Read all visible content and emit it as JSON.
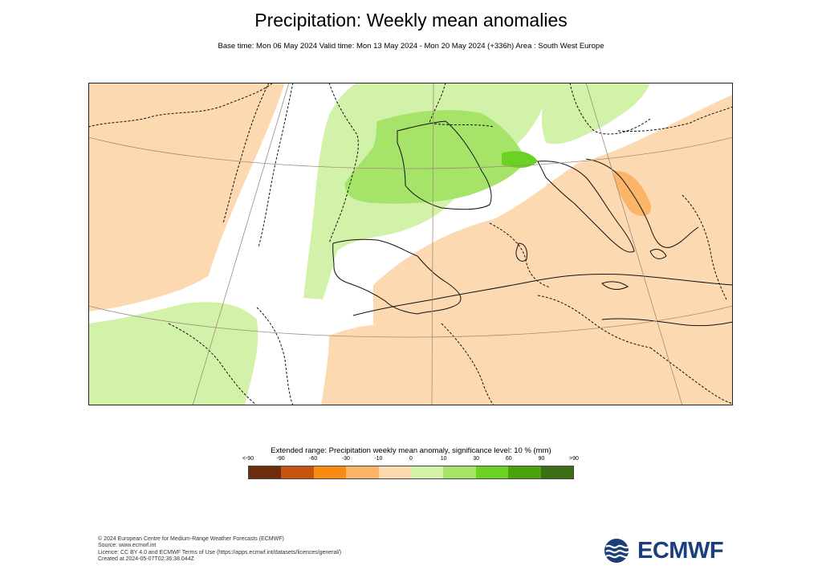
{
  "header": {
    "title": "Precipitation: Weekly mean anomalies",
    "subtitle": "Base time: Mon 06 May 2024 Valid time: Mon 13 May 2024 - Mon 20 May 2024 (+336h) Area : South West Europe"
  },
  "map": {
    "area": "South West Europe",
    "colors": {
      "positive_light": "#d3f2a9",
      "positive_mid": "#a5e468",
      "positive_strong": "#6bd123",
      "negative_light": "#fcd9b0",
      "negative_mid": "#fbb468",
      "coast": "#111111",
      "grid": "#a08c7c"
    }
  },
  "legend": {
    "title": "Extended range: Precipitation weekly mean anomaly, significance level: 10 % (mm)",
    "labels": [
      "<-90",
      "-90",
      "-60",
      "-30",
      "-10",
      "0",
      "10",
      "30",
      "60",
      "90",
      ">90"
    ],
    "colors": [
      "#6b2d0c",
      "#c55411",
      "#f98a12",
      "#fbb468",
      "#fcd9b0",
      "#d3f2a9",
      "#a5e468",
      "#6bd123",
      "#4aa30c",
      "#3c6e15"
    ]
  },
  "footer": {
    "line1": "© 2024 European Centre for Medium-Range Weather Forecasts (ECMWF)",
    "line2": "Source: www.ecmwf.int",
    "line3": "Licence: CC BY 4.0 and ECMWF Terms of Use (https://apps.ecmwf.int/datasets/licences/general/)",
    "line4": "Created at 2024-05-07T02:36:38.044Z"
  },
  "logo": {
    "text": "ECMWF"
  }
}
